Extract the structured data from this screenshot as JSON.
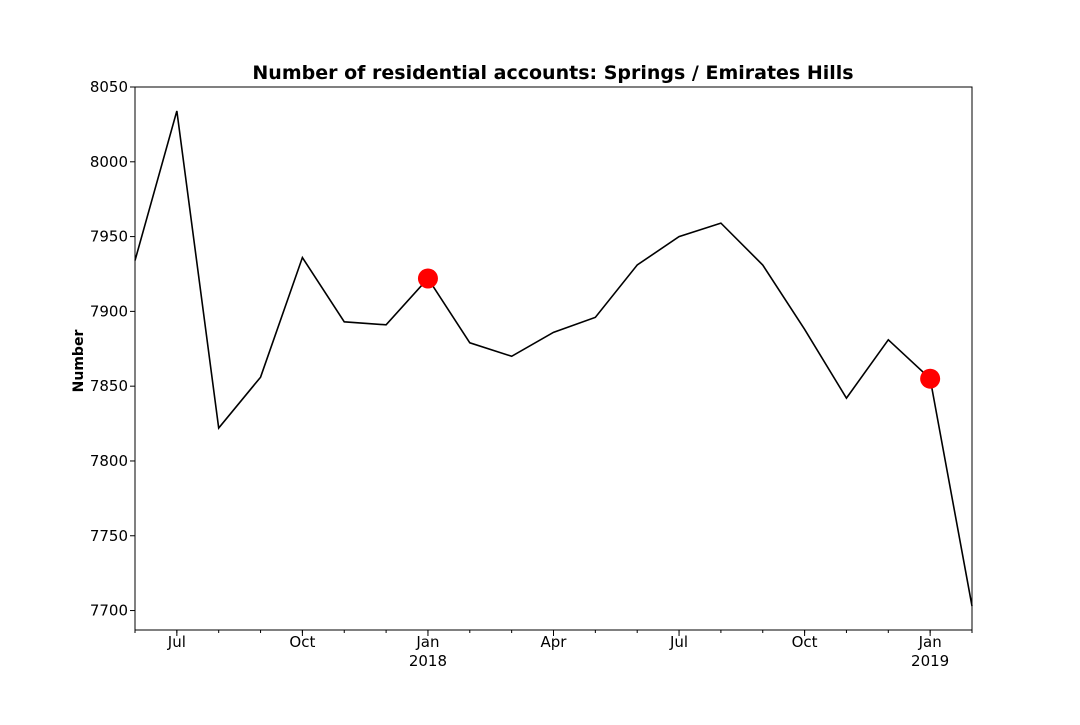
{
  "chart_data": {
    "type": "line",
    "title": "Number of residential accounts: Springs / Emirates Hills",
    "xlabel": "",
    "ylabel": "Number",
    "ylim": [
      7687,
      8050
    ],
    "xlim": [
      "2017-06",
      "2019-02"
    ],
    "grid": false,
    "line_color": "#000000",
    "highlight_color": "#ff0000",
    "yticks": [
      7700,
      7750,
      7800,
      7850,
      7900,
      7950,
      8000,
      8050
    ],
    "xticks": [
      {
        "x": "2017-07",
        "label": "Jul",
        "sub": ""
      },
      {
        "x": "2017-10",
        "label": "Oct",
        "sub": ""
      },
      {
        "x": "2018-01",
        "label": "Jan",
        "sub": "2018"
      },
      {
        "x": "2018-04",
        "label": "Apr",
        "sub": ""
      },
      {
        "x": "2018-07",
        "label": "Jul",
        "sub": ""
      },
      {
        "x": "2018-10",
        "label": "Oct",
        "sub": ""
      },
      {
        "x": "2019-01",
        "label": "Jan",
        "sub": "2019"
      }
    ],
    "series": [
      {
        "x": [
          "2017-06",
          "2017-07",
          "2017-08",
          "2017-09",
          "2017-10",
          "2017-11",
          "2017-12",
          "2018-01",
          "2018-02",
          "2018-03",
          "2018-04",
          "2018-05",
          "2018-06",
          "2018-07",
          "2018-08",
          "2018-09",
          "2018-10",
          "2018-11",
          "2018-12",
          "2019-01",
          "2019-02"
        ],
        "values": [
          7934,
          8034,
          7822,
          7856,
          7936,
          7893,
          7891,
          7922,
          7879,
          7870,
          7886,
          7896,
          7931,
          7950,
          7959,
          7931,
          7888,
          7842,
          7881,
          7855,
          7703
        ]
      }
    ],
    "highlights": [
      {
        "x": "2018-01",
        "value": 7922
      },
      {
        "x": "2019-01",
        "value": 7855
      }
    ]
  }
}
